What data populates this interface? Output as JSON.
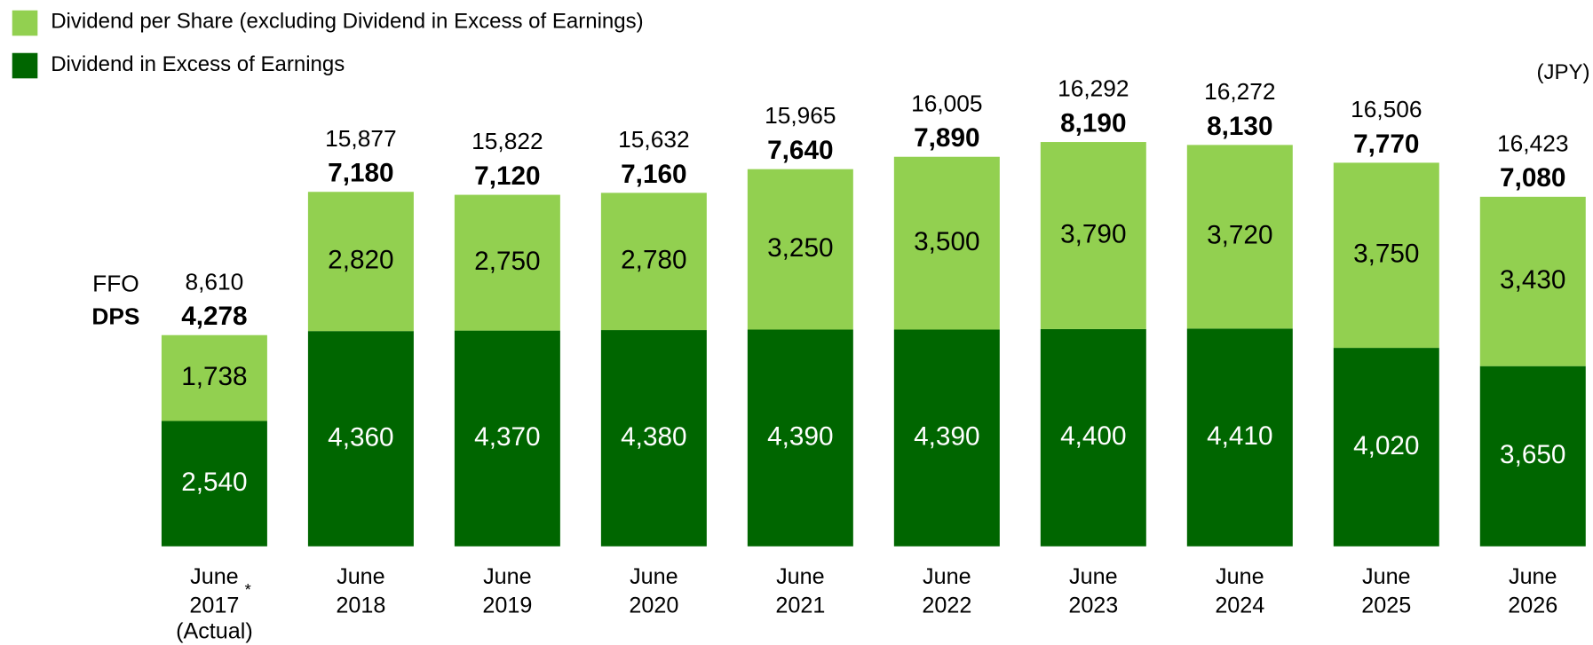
{
  "chart_data": {
    "type": "stacked_bar",
    "unit": "(JPY)",
    "ffo_label": "FFO",
    "dps_label": "DPS",
    "categories": [
      "June 2017",
      "June 2018",
      "June 2019",
      "June 2020",
      "June 2021",
      "June 2022",
      "June 2023",
      "June 2024",
      "June 2025",
      "June 2026"
    ],
    "category_note": {
      "index": 0,
      "marker": "*",
      "text": "(Actual)"
    },
    "ylim": [
      0,
      11000
    ],
    "series": [
      {
        "name": "Dividend in Excess of Earnings",
        "color": "#006600",
        "values": [
          2540,
          4360,
          4370,
          4380,
          4390,
          4390,
          4400,
          4410,
          4020,
          3650
        ],
        "value_labels": [
          "2,540",
          "4,360",
          "4,370",
          "4,380",
          "4,390",
          "4,390",
          "4,400",
          "4,410",
          "4,020",
          "3,650"
        ]
      },
      {
        "name": "Dividend per Share (excluding Dividend in Excess of Earnings)",
        "color": "#92d050",
        "values": [
          1738,
          2820,
          2750,
          2780,
          3250,
          3500,
          3790,
          3720,
          3750,
          3430
        ],
        "value_labels": [
          "1,738",
          "2,820",
          "2,750",
          "2,780",
          "3,250",
          "3,500",
          "3,790",
          "3,720",
          "3,750",
          "3,430"
        ]
      }
    ],
    "dps": [
      4278,
      7180,
      7120,
      7160,
      7640,
      7890,
      8190,
      8130,
      7770,
      7080
    ],
    "dps_labels": [
      "4,278",
      "7,180",
      "7,120",
      "7,160",
      "7,640",
      "7,890",
      "8,190",
      "8,130",
      "7,770",
      "7,080"
    ],
    "ffo": [
      8610,
      15877,
      15822,
      15632,
      15965,
      16005,
      16292,
      16272,
      16506,
      16423
    ],
    "ffo_labels": [
      "8,610",
      "15,877",
      "15,822",
      "15,632",
      "15,965",
      "16,005",
      "16,292",
      "16,272",
      "16,506",
      "16,423"
    ]
  }
}
